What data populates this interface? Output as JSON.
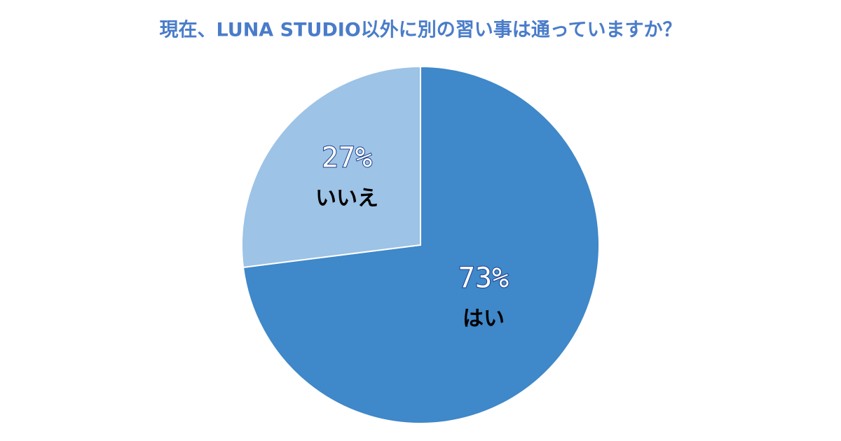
{
  "chart_data": {
    "type": "pie",
    "title": "現在、LUNA STUDIO以外に別の習い事は通っていますか？",
    "categories": [
      "はい",
      "いいえ"
    ],
    "values": [
      73,
      27
    ],
    "value_labels": [
      "73%",
      "27%"
    ],
    "colors": [
      "#3f88c9",
      "#9dc3e6"
    ]
  }
}
